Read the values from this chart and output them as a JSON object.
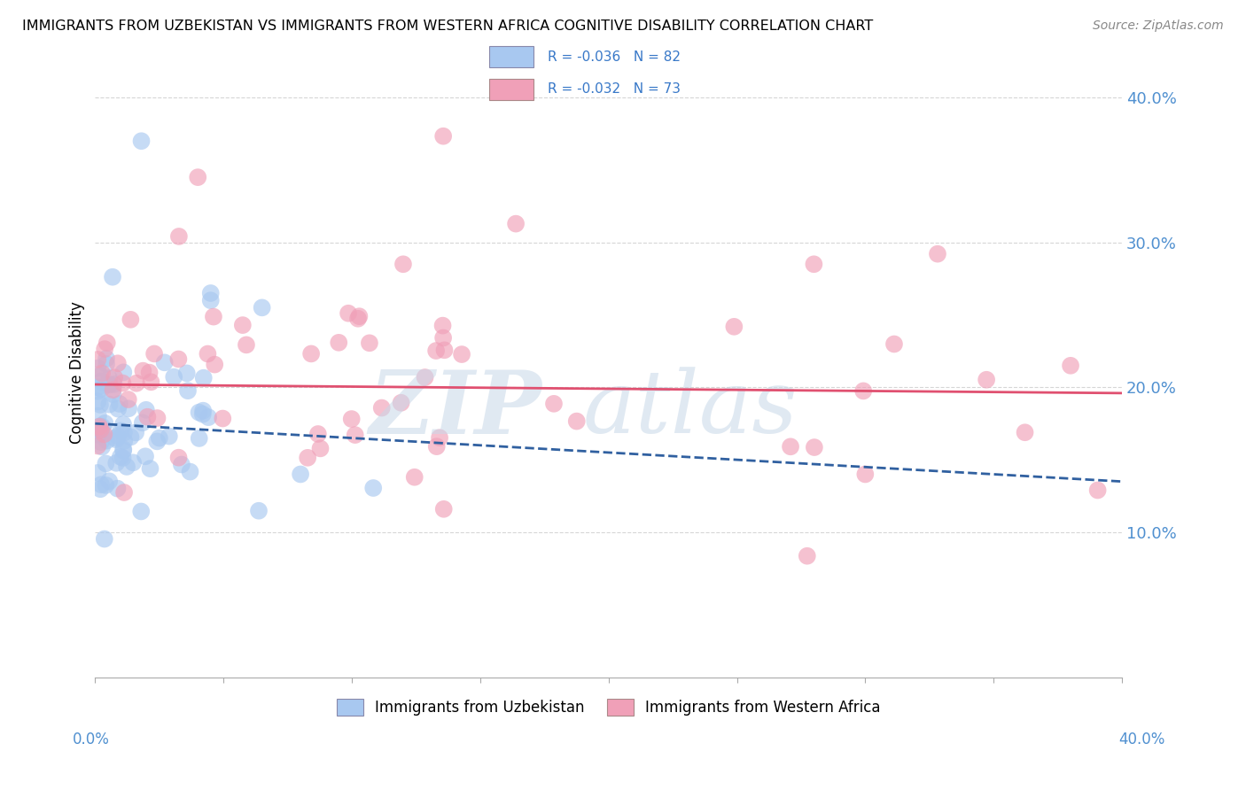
{
  "title": "IMMIGRANTS FROM UZBEKISTAN VS IMMIGRANTS FROM WESTERN AFRICA COGNITIVE DISABILITY CORRELATION CHART",
  "source": "Source: ZipAtlas.com",
  "ylabel": "Cognitive Disability",
  "series1_label": "Immigrants from Uzbekistan",
  "series2_label": "Immigrants from Western Africa",
  "series1_color": "#a8c8f0",
  "series2_color": "#f0a0b8",
  "series1_line_color": "#3060a0",
  "series2_line_color": "#e05070",
  "legend_text_color": "#3878c8",
  "R1": -0.036,
  "N1": 82,
  "R2": -0.032,
  "N2": 73,
  "xlim": [
    0.0,
    0.4
  ],
  "ylim": [
    0.0,
    0.42
  ],
  "background_color": "#ffffff",
  "trend1_x0": 0.0,
  "trend1_y0": 0.175,
  "trend1_x1": 0.4,
  "trend1_y1": 0.135,
  "trend2_x0": 0.0,
  "trend2_y0": 0.202,
  "trend2_x1": 0.4,
  "trend2_y1": 0.196,
  "yticks": [
    0.1,
    0.2,
    0.3,
    0.4
  ],
  "ytick_labels": [
    "10.0%",
    "20.0%",
    "30.0%",
    "40.0%"
  ]
}
